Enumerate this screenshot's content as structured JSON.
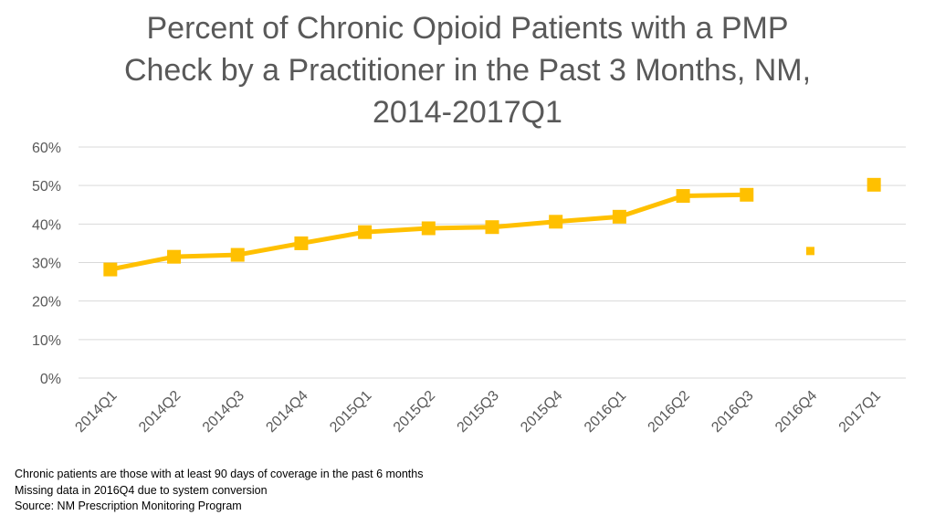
{
  "chart_data": {
    "type": "line",
    "title_lines": [
      "Percent of Chronic Opioid Patients with a PMP",
      "Check by a Practitioner in the Past 3 Months, NM,",
      "2014-2017Q1"
    ],
    "categories": [
      "2014Q1",
      "2014Q2",
      "2014Q3",
      "2014Q4",
      "2015Q1",
      "2015Q2",
      "2015Q3",
      "2015Q4",
      "2016Q1",
      "2016Q2",
      "2016Q3",
      "2016Q4",
      "2017Q1"
    ],
    "y_tick_labels": [
      "0%",
      "10%",
      "20%",
      "30%",
      "40%",
      "50%",
      "60%"
    ],
    "ylim": [
      0,
      60
    ],
    "grid": true,
    "legend": "none",
    "series": [
      {
        "values": [
          28.2,
          31.5,
          32.0,
          35.0,
          37.9,
          38.9,
          39.2,
          40.6,
          41.9,
          47.3,
          47.6,
          33.0,
          50.2
        ],
        "marker_sizes": [
          "large",
          "large",
          "large",
          "large",
          "large",
          "large",
          "large",
          "large",
          "large",
          "large",
          "large",
          "small",
          "large"
        ],
        "connected_through_index": 10,
        "color": "#FFC000"
      }
    ]
  },
  "footnotes": [
    "Chronic patients are those with at least 90 days of coverage in the past 6 months",
    "Missing data in 2016Q4 due to system conversion",
    "Source:  NM Prescription Monitoring Program"
  ],
  "colors": {
    "series": "#FFC000",
    "grid": "#D9D9D9",
    "text": "#595959"
  }
}
